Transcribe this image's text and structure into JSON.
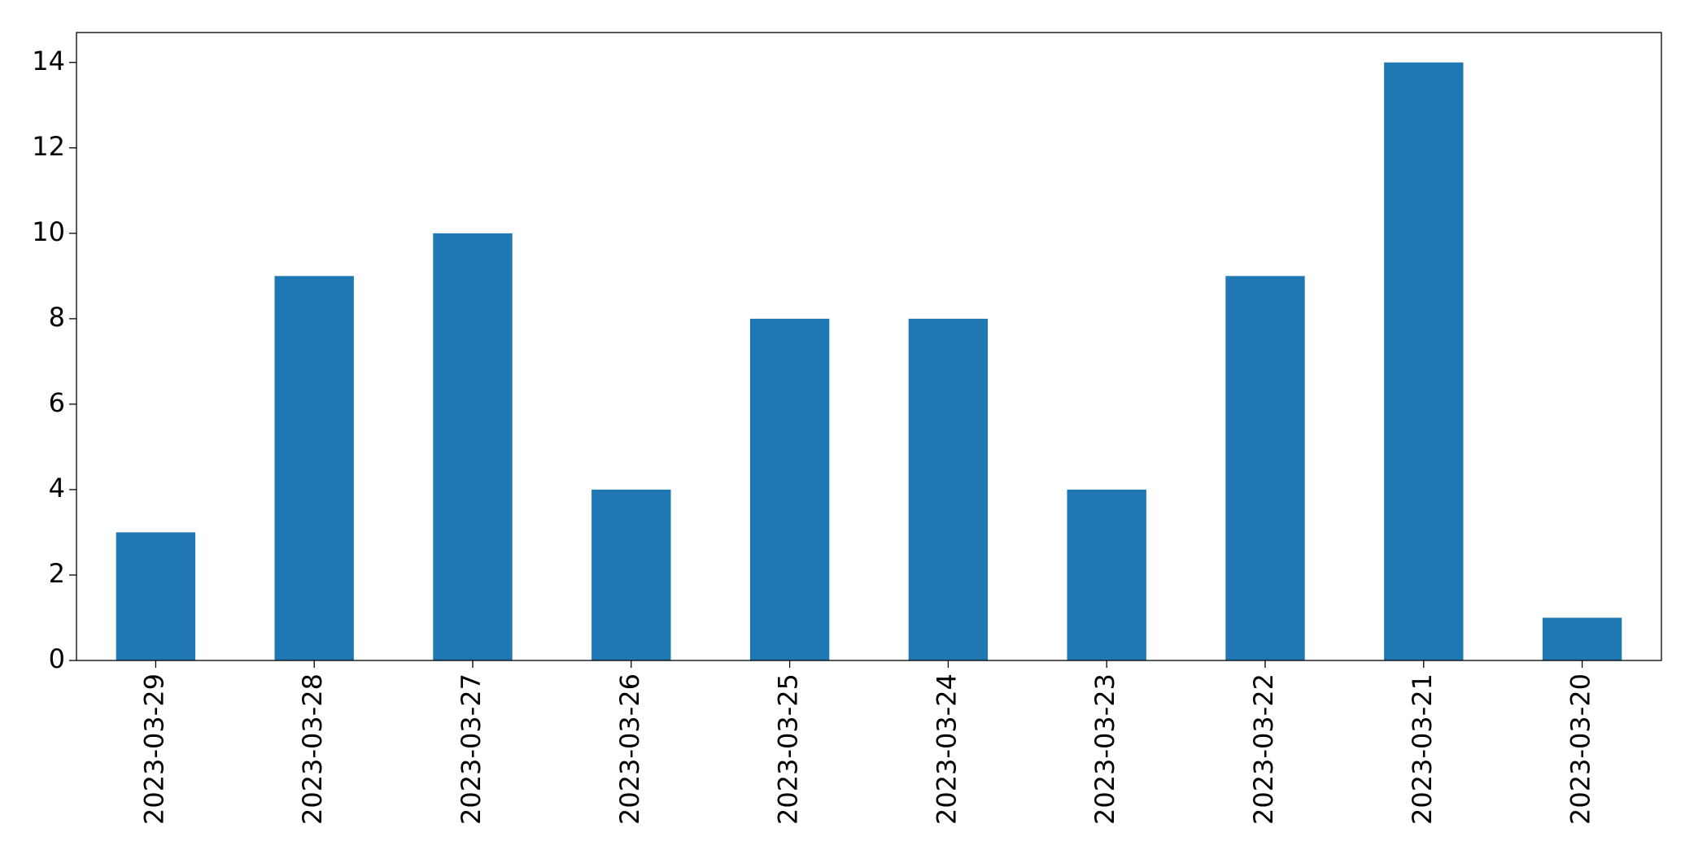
{
  "chart_data": {
    "type": "bar",
    "categories": [
      "2023-03-29",
      "2023-03-28",
      "2023-03-27",
      "2023-03-26",
      "2023-03-25",
      "2023-03-24",
      "2023-03-23",
      "2023-03-22",
      "2023-03-21",
      "2023-03-20"
    ],
    "values": [
      3,
      9,
      10,
      4,
      8,
      8,
      4,
      9,
      14,
      1
    ],
    "color": "#1f77b4",
    "ylim": [
      0,
      14.7
    ],
    "yticks": [
      0,
      2,
      4,
      6,
      8,
      10,
      12,
      14
    ],
    "grid": false
  }
}
